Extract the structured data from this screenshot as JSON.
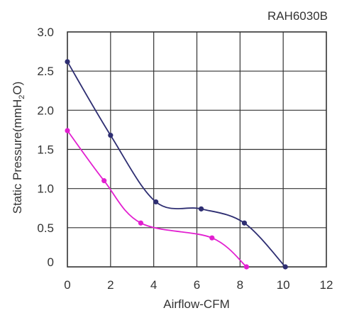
{
  "chart_data": {
    "type": "line",
    "title": "RAH6030B",
    "xlabel": "Airflow-CFM",
    "ylabel_main": "Static Pressure(mmH",
    "ylabel_sub": "2",
    "ylabel_end": "O)",
    "xlim": [
      0,
      12
    ],
    "ylim": [
      0,
      3.0
    ],
    "x_ticks": [
      "0",
      "2",
      "4",
      "6",
      "8",
      "10",
      "12"
    ],
    "y_ticks": [
      "0",
      "0.5",
      "1.0",
      "1.5",
      "2.0",
      "2.5",
      "3.0"
    ],
    "grid": true,
    "series": [
      {
        "color": "#2e2e72",
        "points": [
          [
            0,
            2.62
          ],
          [
            2.0,
            1.68
          ],
          [
            4.1,
            0.83
          ],
          [
            6.2,
            0.74
          ],
          [
            8.2,
            0.56
          ],
          [
            10.1,
            0.0
          ]
        ]
      },
      {
        "color": "#e21fd0",
        "points": [
          [
            0,
            1.74
          ],
          [
            1.7,
            1.1
          ],
          [
            3.4,
            0.56
          ],
          [
            6.7,
            0.37
          ],
          [
            8.3,
            0.0
          ]
        ]
      }
    ]
  }
}
